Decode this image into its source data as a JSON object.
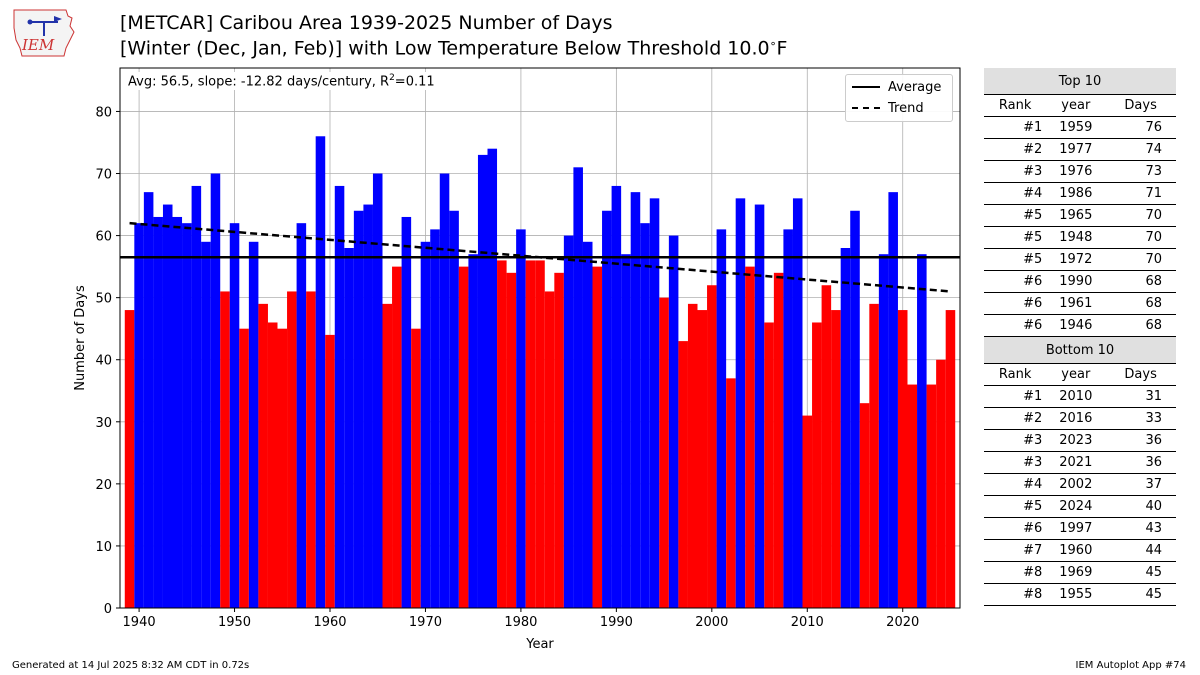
{
  "logo": {
    "text": "IEM"
  },
  "header": {
    "title_line1": "[METCAR] Caribou Area 1939-2025 Number of Days",
    "title_line2": "[Winter (Dec, Jan, Feb)] with Low Temperature Below Threshold 10.0",
    "title_degree": "∘",
    "title_unit": "F"
  },
  "stats": {
    "prefix": "Avg: 56.5, slope: -12.82 days/century, R",
    "sup": "2",
    "suffix": "=0.11"
  },
  "legend": {
    "average_label": "Average",
    "trend_label": "Trend"
  },
  "colors": {
    "above": "#0000ff",
    "below": "#ff0000",
    "average_line": "#000000",
    "trend_line": "#000000"
  },
  "chart_data": {
    "type": "bar",
    "xlabel": "Year",
    "ylabel": "Number of Days",
    "xlim": [
      1938,
      2026
    ],
    "ylim": [
      0,
      87
    ],
    "xticks": [
      1940,
      1950,
      1960,
      1970,
      1980,
      1990,
      2000,
      2010,
      2020
    ],
    "yticks": [
      0,
      10,
      20,
      30,
      40,
      50,
      60,
      70,
      80
    ],
    "grid": true,
    "legend_position": "top-right",
    "average": 56.5,
    "trend": {
      "x": [
        1939,
        2025
      ],
      "y": [
        62.0,
        51.0
      ]
    },
    "x": [
      1939,
      1940,
      1941,
      1942,
      1943,
      1944,
      1945,
      1946,
      1947,
      1948,
      1949,
      1950,
      1951,
      1952,
      1953,
      1954,
      1955,
      1956,
      1957,
      1958,
      1959,
      1960,
      1961,
      1962,
      1963,
      1964,
      1965,
      1966,
      1967,
      1968,
      1969,
      1970,
      1971,
      1972,
      1973,
      1974,
      1975,
      1976,
      1977,
      1978,
      1979,
      1980,
      1981,
      1982,
      1983,
      1984,
      1985,
      1986,
      1987,
      1988,
      1989,
      1990,
      1991,
      1992,
      1993,
      1994,
      1995,
      1996,
      1997,
      1998,
      1999,
      2000,
      2001,
      2002,
      2003,
      2004,
      2005,
      2006,
      2007,
      2008,
      2009,
      2010,
      2011,
      2012,
      2013,
      2014,
      2015,
      2016,
      2017,
      2018,
      2019,
      2020,
      2021,
      2022,
      2023,
      2024,
      2025
    ],
    "y": [
      48,
      62,
      67,
      63,
      65,
      63,
      62,
      68,
      59,
      70,
      51,
      62,
      45,
      59,
      49,
      46,
      45,
      51,
      62,
      51,
      76,
      44,
      68,
      58,
      64,
      65,
      70,
      49,
      55,
      63,
      45,
      59,
      61,
      70,
      64,
      55,
      57,
      73,
      74,
      56,
      54,
      61,
      56,
      56,
      51,
      54,
      60,
      71,
      59,
      55,
      64,
      68,
      57,
      67,
      62,
      66,
      50,
      60,
      43,
      49,
      48,
      52,
      61,
      37,
      66,
      55,
      65,
      46,
      54,
      61,
      66,
      31,
      46,
      52,
      48,
      58,
      64,
      33,
      49,
      57,
      67,
      48,
      36,
      57,
      36,
      40,
      48
    ]
  },
  "tables": {
    "top": {
      "title": "Top 10",
      "columns": [
        "Rank",
        "year",
        "Days"
      ],
      "rows": [
        [
          "#1",
          "1959",
          "76"
        ],
        [
          "#2",
          "1977",
          "74"
        ],
        [
          "#3",
          "1976",
          "73"
        ],
        [
          "#4",
          "1986",
          "71"
        ],
        [
          "#5",
          "1965",
          "70"
        ],
        [
          "#5",
          "1948",
          "70"
        ],
        [
          "#5",
          "1972",
          "70"
        ],
        [
          "#6",
          "1990",
          "68"
        ],
        [
          "#6",
          "1961",
          "68"
        ],
        [
          "#6",
          "1946",
          "68"
        ]
      ]
    },
    "bottom": {
      "title": "Bottom 10",
      "columns": [
        "Rank",
        "year",
        "Days"
      ],
      "rows": [
        [
          "#1",
          "2010",
          "31"
        ],
        [
          "#2",
          "2016",
          "33"
        ],
        [
          "#3",
          "2023",
          "36"
        ],
        [
          "#3",
          "2021",
          "36"
        ],
        [
          "#4",
          "2002",
          "37"
        ],
        [
          "#5",
          "2024",
          "40"
        ],
        [
          "#6",
          "1997",
          "43"
        ],
        [
          "#7",
          "1960",
          "44"
        ],
        [
          "#8",
          "1969",
          "45"
        ],
        [
          "#8",
          "1955",
          "45"
        ]
      ]
    }
  },
  "footer": {
    "generated": "Generated at 14 Jul 2025 8:32 AM CDT in 0.72s",
    "app": "IEM Autoplot App #74"
  }
}
